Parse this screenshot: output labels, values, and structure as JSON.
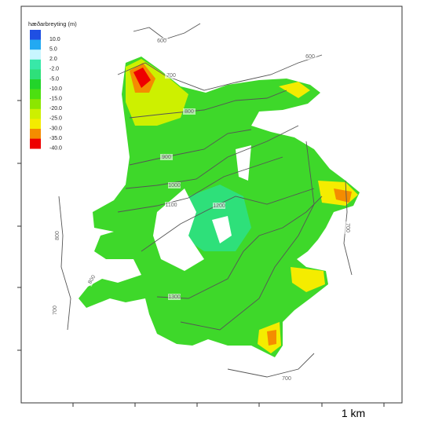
{
  "legend": {
    "title": "hæðarbreyting (m)",
    "items": [
      {
        "label": "10.0",
        "color": "#1f4fe3"
      },
      {
        "label": "5.0",
        "color": "#22a9f2"
      },
      {
        "label": "2.0",
        "color": "#c8f6ff"
      },
      {
        "label": "-2.0",
        "color": "#38e8a8"
      },
      {
        "label": "-5.0",
        "color": "#2ee07a"
      },
      {
        "label": "-10.0",
        "color": "#22d42a"
      },
      {
        "label": "-15.0",
        "color": "#4ce010"
      },
      {
        "label": "-20.0",
        "color": "#8ce600"
      },
      {
        "label": "-25.0",
        "color": "#cdf000"
      },
      {
        "label": "-30.0",
        "color": "#f4ec00"
      },
      {
        "label": "-35.0",
        "color": "#f48c00"
      },
      {
        "label": "-40.0",
        "color": "#ee0000"
      }
    ]
  },
  "contour_labels": [
    "600",
    "600",
    "700",
    "800",
    "900",
    "1000",
    "1100",
    "1200",
    "1300",
    "700",
    "800",
    "800",
    "700",
    "700"
  ],
  "scale_bar": {
    "label": "1 km"
  }
}
